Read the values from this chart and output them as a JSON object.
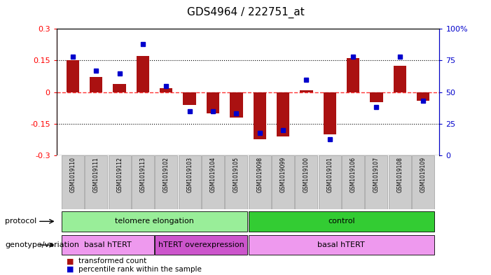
{
  "title": "GDS4964 / 222751_at",
  "samples": [
    "GSM1019110",
    "GSM1019111",
    "GSM1019112",
    "GSM1019113",
    "GSM1019102",
    "GSM1019103",
    "GSM1019104",
    "GSM1019105",
    "GSM1019098",
    "GSM1019099",
    "GSM1019100",
    "GSM1019101",
    "GSM1019106",
    "GSM1019107",
    "GSM1019108",
    "GSM1019109"
  ],
  "bar_values": [
    0.15,
    0.072,
    0.04,
    0.17,
    0.02,
    -0.06,
    -0.1,
    -0.12,
    -0.225,
    -0.21,
    0.01,
    -0.2,
    0.16,
    -0.048,
    0.125,
    -0.04
  ],
  "blue_values": [
    78,
    67,
    65,
    88,
    55,
    35,
    35,
    33,
    18,
    20,
    60,
    13,
    78,
    38,
    78,
    43
  ],
  "ylim_left": [
    -0.3,
    0.3
  ],
  "ylim_right": [
    0,
    100
  ],
  "yticks_left": [
    -0.3,
    -0.15,
    0.0,
    0.15,
    0.3
  ],
  "ytick_labels_left": [
    "-0.3",
    "-0.15",
    "0",
    "0.15",
    "0.3"
  ],
  "yticks_right": [
    0,
    25,
    50,
    75,
    100
  ],
  "ytick_labels_right": [
    "0",
    "25",
    "50",
    "75",
    "100%"
  ],
  "bar_color": "#AA1111",
  "blue_color": "#0000CC",
  "red_dashed_color": "#FF3333",
  "background_color": "#FFFFFF",
  "protocol_groups": [
    {
      "label": "telomere elongation",
      "start": 0,
      "end": 8,
      "color": "#99EE99"
    },
    {
      "label": "control",
      "start": 8,
      "end": 16,
      "color": "#33CC33"
    }
  ],
  "genotype_groups": [
    {
      "label": "basal hTERT",
      "start": 0,
      "end": 4,
      "color": "#EE99EE"
    },
    {
      "label": "hTERT overexpression",
      "start": 4,
      "end": 8,
      "color": "#CC55CC"
    },
    {
      "label": "basal hTERT",
      "start": 8,
      "end": 16,
      "color": "#EE99EE"
    }
  ],
  "protocol_label": "protocol",
  "genotype_label": "genotype/variation",
  "legend_bar_label": "transformed count",
  "legend_blue_label": "percentile rank within the sample"
}
